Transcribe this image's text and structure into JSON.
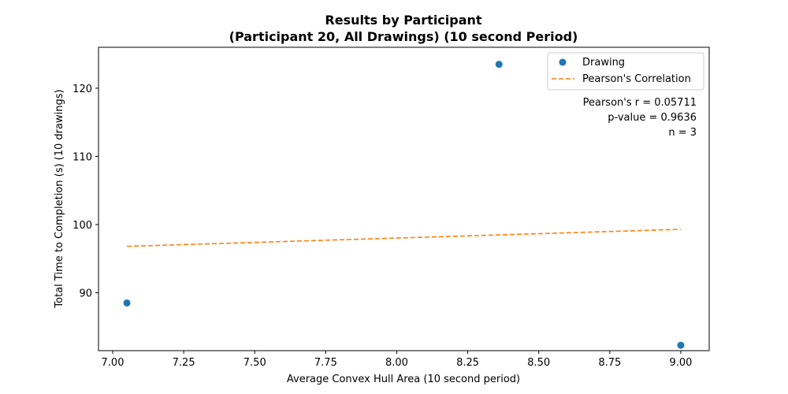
{
  "chart_data": {
    "type": "scatter",
    "title_line1": "Results by Participant",
    "title_line2": "(Participant 20, All Drawings) (10 second Period)",
    "xlabel": "Average Convex Hull Area (10 second period)",
    "ylabel": "Total Time to Completion (s) (10 drawings)",
    "xlim": [
      6.95,
      9.1
    ],
    "ylim": [
      81.5,
      126
    ],
    "xticks": [
      7.0,
      7.25,
      7.5,
      7.75,
      8.0,
      8.25,
      8.5,
      8.75,
      9.0
    ],
    "xtick_labels": [
      "7.00",
      "7.25",
      "7.50",
      "7.75",
      "8.00",
      "8.25",
      "8.50",
      "8.75",
      "9.00"
    ],
    "yticks": [
      90,
      100,
      110,
      120
    ],
    "ytick_labels": [
      "90",
      "100",
      "110",
      "120"
    ],
    "series": [
      {
        "name": "Drawing",
        "kind": "scatter",
        "color": "#1f77b4",
        "points": [
          [
            7.05,
            88.5
          ],
          [
            8.36,
            123.5
          ],
          [
            9.0,
            82.3
          ]
        ]
      },
      {
        "name": "Pearson's Correlation",
        "kind": "line",
        "style": "dashed",
        "color": "#ff7f0e",
        "points": [
          [
            7.05,
            96.8
          ],
          [
            9.0,
            99.3
          ]
        ]
      }
    ],
    "legend": {
      "location": "top-right",
      "entries": [
        "Drawing",
        "Pearson's Correlation"
      ]
    },
    "annotations": [
      "Pearson's r = 0.05711",
      "p-value = 0.9636",
      "n = 3"
    ]
  }
}
